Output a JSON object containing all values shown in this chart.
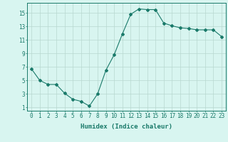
{
  "x": [
    0,
    1,
    2,
    3,
    4,
    5,
    6,
    7,
    8,
    9,
    10,
    11,
    12,
    13,
    14,
    15,
    16,
    17,
    18,
    19,
    20,
    21,
    22,
    23
  ],
  "y": [
    6.7,
    5.0,
    4.4,
    4.4,
    3.1,
    2.2,
    1.9,
    1.2,
    3.0,
    6.5,
    8.8,
    11.9,
    14.8,
    15.6,
    15.5,
    15.5,
    13.5,
    13.1,
    12.8,
    12.7,
    12.5,
    12.5,
    12.5,
    11.5
  ],
  "line_color": "#1a7a6a",
  "marker": "D",
  "marker_size": 2,
  "bg_color": "#d8f5f0",
  "grid_color": "#b8d8d0",
  "xlabel": "Humidex (Indice chaleur)",
  "ylabel": "",
  "yticks": [
    1,
    3,
    5,
    7,
    9,
    11,
    13,
    15
  ],
  "ylim": [
    0.5,
    16.5
  ],
  "xlim": [
    -0.5,
    23.5
  ],
  "xticks": [
    0,
    1,
    2,
    3,
    4,
    5,
    6,
    7,
    8,
    9,
    10,
    11,
    12,
    13,
    14,
    15,
    16,
    17,
    18,
    19,
    20,
    21,
    22,
    23
  ],
  "xtick_labels": [
    "0",
    "1",
    "2",
    "3",
    "4",
    "5",
    "6",
    "7",
    "8",
    "9",
    "10",
    "11",
    "12",
    "13",
    "14",
    "15",
    "16",
    "17",
    "18",
    "19",
    "20",
    "21",
    "22",
    "23"
  ],
  "tick_color": "#1a7a6a",
  "label_fontsize": 6.5,
  "tick_fontsize": 5.5
}
